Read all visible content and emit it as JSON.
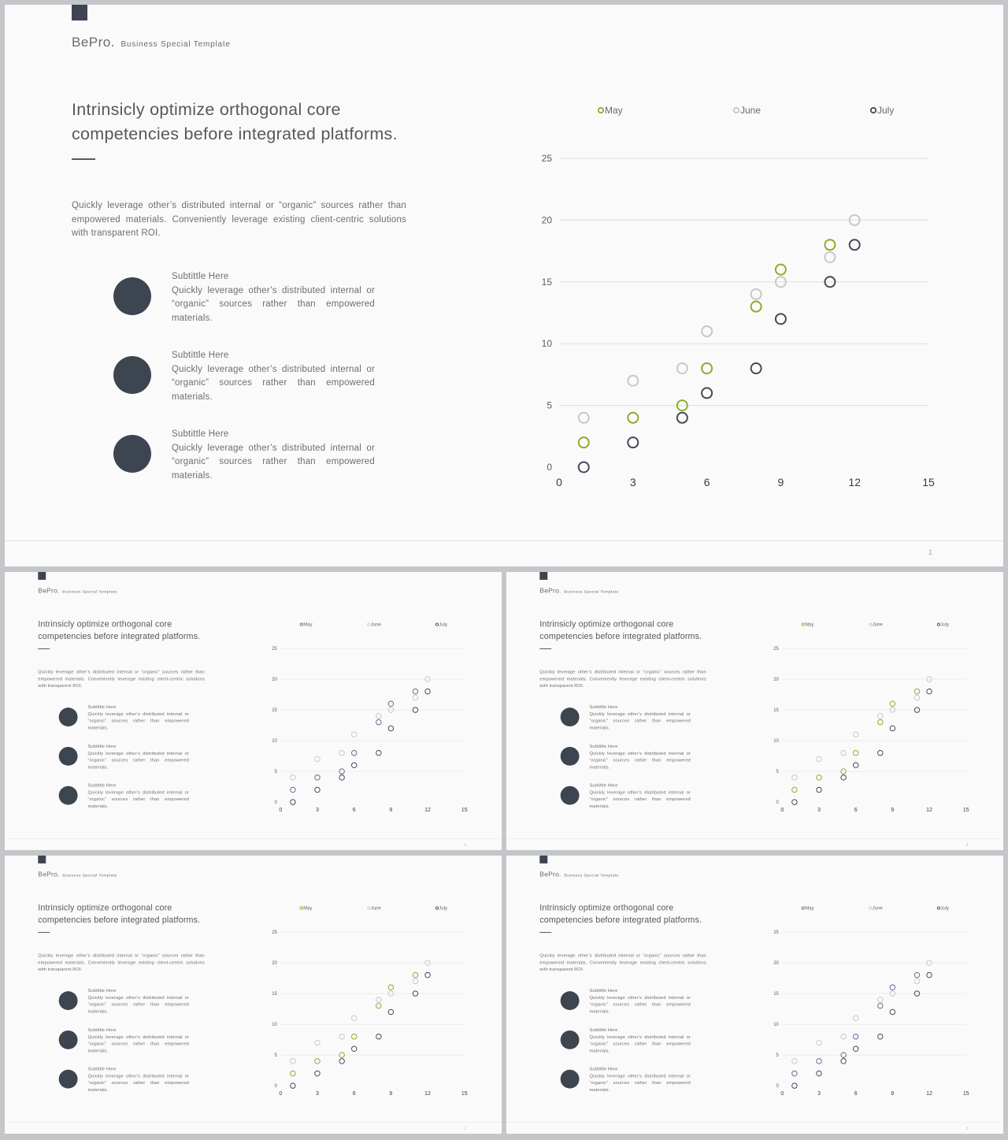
{
  "slides": [
    {
      "page": "1",
      "colors": {
        "may": "#8fac2a",
        "june": "#c8c8c8",
        "july": "#454a55"
      }
    },
    {
      "page": "2",
      "colors": {
        "may": "#5b6f94",
        "june": "#c8c8c8",
        "july": "#454a55"
      }
    },
    {
      "page": "3",
      "colors": {
        "may": "#8fac2a",
        "june": "#c8c8c8",
        "july": "#454a55"
      }
    },
    {
      "page": "1",
      "colors": {
        "may": "#8fac2a",
        "june": "#c8c8c8",
        "july": "#454a55"
      }
    },
    {
      "page": "2",
      "colors": {
        "may": "#5b6f94",
        "june": "#c8c8c8",
        "july": "#454a55"
      }
    }
  ],
  "brand": {
    "name": "BePro.",
    "tagline": "Business  Special  Template"
  },
  "headline": "Intrinsicly optimize orthogonal core competencies before integrated platforms.",
  "intro": "Quickly leverage other’s distributed internal or “organic” sources rather than empowered materials. Conveniently leverage existing client-centric solutions with transparent ROI.",
  "features": [
    {
      "subtitle": "Subtittle Here",
      "body": "Quickly leverage other’s distributed internal or “organic” sources rather than empowered materials."
    },
    {
      "subtitle": "Subtittle Here",
      "body": "Quickly leverage other’s distributed internal or “organic” sources rather than empowered materials."
    },
    {
      "subtitle": "Subtittle Here",
      "body": "Quickly leverage other’s distributed internal or “organic” sources rather than empowered materials."
    }
  ],
  "chart_data": {
    "type": "scatter",
    "title": "",
    "xlabel": "",
    "ylabel": "",
    "xlim": [
      0,
      15
    ],
    "ylim": [
      0,
      25
    ],
    "x_ticks": [
      0,
      3,
      6,
      9,
      12,
      15
    ],
    "y_ticks": [
      0,
      5,
      10,
      15,
      20,
      25
    ],
    "grid": "horizontal",
    "legend": "top",
    "series": [
      {
        "name": "May",
        "points": [
          [
            1,
            2
          ],
          [
            3,
            4
          ],
          [
            5,
            5
          ],
          [
            6,
            8
          ],
          [
            8,
            13
          ],
          [
            9,
            16
          ],
          [
            11,
            18
          ]
        ]
      },
      {
        "name": "June",
        "points": [
          [
            1,
            4
          ],
          [
            3,
            7
          ],
          [
            5,
            8
          ],
          [
            6,
            11
          ],
          [
            8,
            14
          ],
          [
            9,
            15
          ],
          [
            11,
            17
          ],
          [
            12,
            20
          ]
        ]
      },
      {
        "name": "July",
        "points": [
          [
            1,
            0
          ],
          [
            3,
            2
          ],
          [
            5,
            4
          ],
          [
            6,
            6
          ],
          [
            8,
            8
          ],
          [
            9,
            12
          ],
          [
            11,
            15
          ],
          [
            12,
            18
          ]
        ]
      }
    ]
  }
}
